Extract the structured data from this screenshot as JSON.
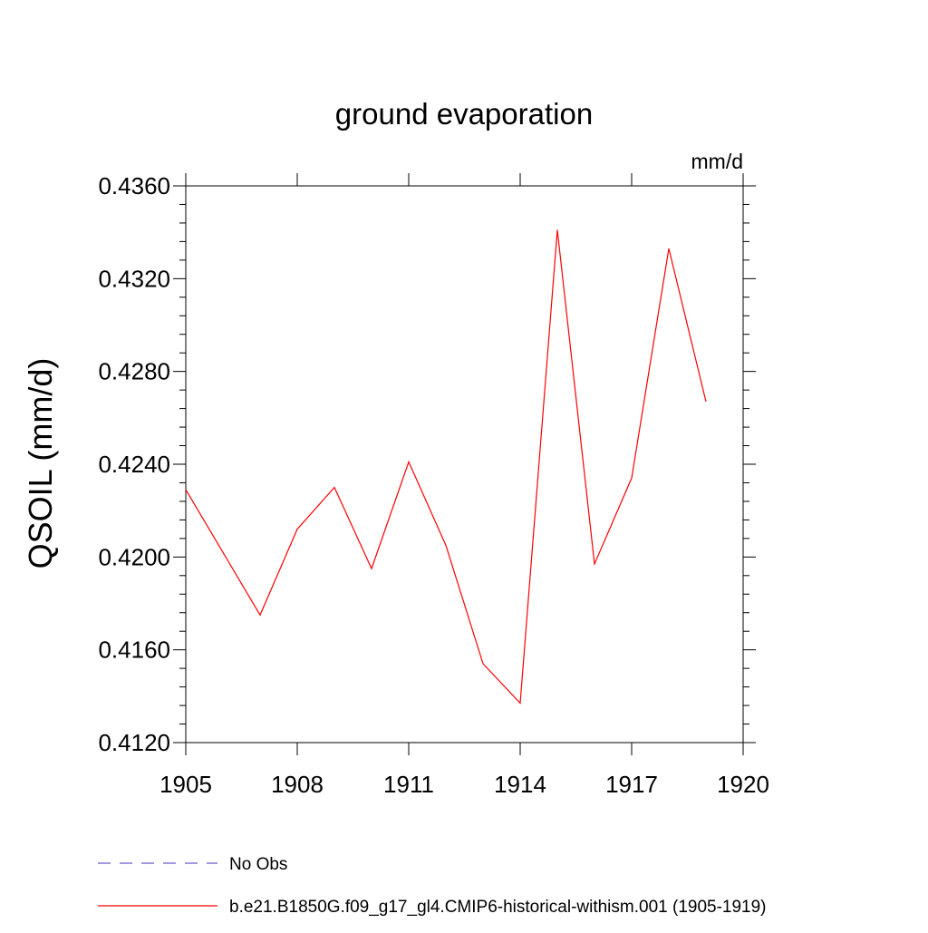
{
  "chart_data": {
    "type": "line",
    "title": "ground evaporation",
    "units": "mm/d",
    "ylabel": "QSOIL  (mm/d)",
    "xlabel": "",
    "xlim": [
      1905,
      1920
    ],
    "ylim": [
      0.412,
      0.436
    ],
    "xticks": [
      "1905",
      "1908",
      "1911",
      "1914",
      "1917",
      "1920"
    ],
    "yticks": [
      "0.4120",
      "0.4160",
      "0.4200",
      "0.4240",
      "0.4280",
      "0.4320",
      "0.4360"
    ],
    "grid": false,
    "legend_placement": "bottom",
    "series": [
      {
        "name": "b.e21.B1850G.f09_g17_gl4.CMIP6-historical-withism.001 (1905-1919)",
        "color": "#ff0000",
        "style": "solid",
        "x": [
          1905,
          1906,
          1907,
          1908,
          1909,
          1910,
          1911,
          1912,
          1913,
          1914,
          1915,
          1916,
          1917,
          1918,
          1919
        ],
        "values": [
          0.4229,
          0.4202,
          0.4175,
          0.4212,
          0.423,
          0.4195,
          0.4241,
          0.4205,
          0.4154,
          0.4137,
          0.4341,
          0.4197,
          0.4234,
          0.4333,
          0.4267
        ]
      }
    ],
    "legend": [
      {
        "label": "No Obs",
        "color": "#6a5acd",
        "style": "dashed"
      },
      {
        "label": "b.e21.B1850G.f09_g17_gl4.CMIP6-historical-withism.001 (1905-1919)",
        "color": "#ff0000",
        "style": "solid"
      }
    ]
  }
}
